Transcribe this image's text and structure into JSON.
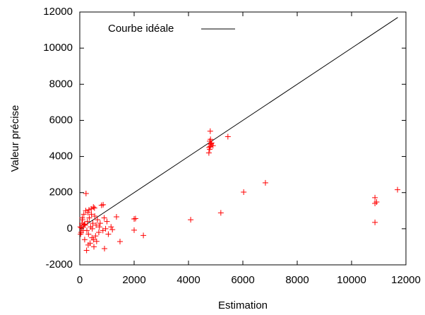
{
  "chart_data": {
    "type": "scatter",
    "xlabel": "Estimation",
    "ylabel": "Valeur précise",
    "xlim": [
      0,
      12000
    ],
    "xticks": [
      0,
      2000,
      4000,
      6000,
      8000,
      10000,
      12000
    ],
    "ylim": [
      -2000,
      12000
    ],
    "yticks": [
      -2000,
      0,
      2000,
      4000,
      6000,
      8000,
      10000,
      12000
    ],
    "legend": "upper left",
    "series": [
      {
        "name": "Courbe idéale",
        "type": "line",
        "color": "#000000",
        "x": [
          0,
          11700
        ],
        "values": [
          0,
          11700
        ]
      },
      {
        "type": "scatter",
        "color": "#ff0000",
        "x": [
          230,
          20,
          50,
          80,
          100,
          120,
          150,
          180,
          200,
          220,
          250,
          280,
          300,
          320,
          350,
          380,
          400,
          420,
          450,
          480,
          500,
          520,
          550,
          580,
          600,
          650,
          700,
          750,
          800,
          850,
          900,
          950,
          1000,
          1050,
          1150,
          1200,
          60,
          140,
          260,
          340,
          460,
          540,
          620,
          720,
          30,
          90,
          170,
          310,
          430,
          510,
          860,
          910,
          1350,
          1480,
          2000,
          2050,
          2000,
          2340,
          4080,
          4750,
          4780,
          4800,
          4820,
          4850,
          4780,
          4810,
          4760,
          4830,
          4900,
          4800,
          5450,
          5190,
          6030,
          6830,
          10860,
          10860,
          10920,
          10860,
          11690
        ],
        "values": [
          1950,
          100,
          -200,
          300,
          500,
          -100,
          800,
          -600,
          200,
          1000,
          -1200,
          400,
          900,
          -300,
          600,
          -800,
          100,
          1100,
          -500,
          300,
          1200,
          -1000,
          700,
          -400,
          200,
          500,
          -200,
          300,
          1300,
          -100,
          600,
          0,
          400,
          -300,
          100,
          -50,
          50,
          200,
          -100,
          1050,
          0,
          1150,
          -700,
          100,
          -300,
          600,
          250,
          -900,
          800,
          -600,
          1330,
          -1100,
          660,
          -710,
          540,
          560,
          -80,
          -370,
          500,
          4200,
          4400,
          4550,
          4650,
          4750,
          4850,
          4950,
          4500,
          4700,
          4600,
          5400,
          5100,
          880,
          2030,
          2540,
          1720,
          1400,
          1480,
          350,
          2160
        ]
      }
    ]
  }
}
